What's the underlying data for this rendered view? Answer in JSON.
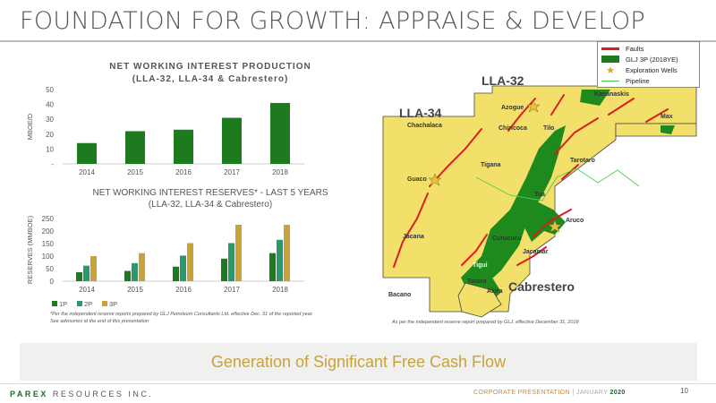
{
  "page": {
    "title": "FOUNDATION FOR GROWTH: APPRAISE & DEVELOP",
    "footnote_line1": "*Per the independent reserve reports prepared by GLJ Petroleum Consultants Ltd. effective Dec. 31 of the reported year.",
    "footnote_line2": "See advisories at the end of this presentation",
    "map_note": "As per the independent reserve report prepared by GLJ. effective  December 31, 2018",
    "banner": "Generation of Significant Free Cash Flow",
    "brand_main": "PAREX",
    "brand_rest": " RESOURCES INC.",
    "corp_label": "CORPORATE PRESENTATION",
    "corp_sep": "|",
    "corp_month": "JANUARY",
    "corp_year": "2020",
    "page_number": "10"
  },
  "colors": {
    "green": "#1e7a1e",
    "teal": "#2a9a6a",
    "gold": "#c8a23a",
    "map_fill": "#f3e06a",
    "map_block": "#1e8a1e"
  },
  "chart_data": [
    {
      "type": "bar",
      "title": "NET WORKING INTEREST PRODUCTION",
      "subtitle": "(LLA-32, LLA-34 & Cabrestero)",
      "ylabel": "MBOE/D",
      "ylim": [
        0,
        50
      ],
      "yticks": [
        "-",
        "10",
        "20",
        "30",
        "40",
        "50"
      ],
      "categories": [
        "2014",
        "2015",
        "2016",
        "2017",
        "2018"
      ],
      "series": [
        {
          "values": [
            14,
            22,
            23,
            31,
            41
          ]
        }
      ]
    },
    {
      "type": "bar",
      "title": "NET WORKING INTEREST RESERVES* - LAST 5 YEARS",
      "subtitle": "(LLA-32, LLA-34 & Cabrestero)",
      "ylabel": "RESERVES (MMBOE)",
      "ylim": [
        0,
        250
      ],
      "yticks": [
        "0",
        "50",
        "100",
        "150",
        "200",
        "250"
      ],
      "categories": [
        "2014",
        "2015",
        "2016",
        "2017",
        "2018"
      ],
      "series": [
        {
          "name": "1P",
          "values": [
            36,
            41,
            58,
            90,
            112
          ]
        },
        {
          "name": "2P",
          "values": [
            62,
            72,
            102,
            152,
            165
          ]
        },
        {
          "name": "3P",
          "values": [
            100,
            112,
            152,
            225,
            225
          ]
        }
      ]
    }
  ],
  "map": {
    "legend": {
      "faults": "Faults",
      "glj": "GLJ 3P (2018YE)",
      "wells": "Exploration Wells",
      "pipeline": "Pipeline"
    },
    "blocks": {
      "lla32": "LLA-32",
      "lla34": "LLA-34",
      "cabrestero": "Cabrestero"
    },
    "fields": {
      "kananaskis": "Kananaskis",
      "max": "Max",
      "azogue": "Azogue",
      "chachalaca": "Chachalaca",
      "chiricoca": "Chiricoca",
      "tilo": "Tilo",
      "tigana": "Tigana",
      "tarotaro": "Tarotaro",
      "guaco": "Guaco",
      "tua": "Tua",
      "aruco": "Aruco",
      "jacana": "Jacana",
      "curucucu": "Curucucu",
      "jacamar": "Jacamar",
      "tigui": "Tigui",
      "totoro": "Totoro",
      "akira": "Akira",
      "bacano": "Bacano"
    }
  }
}
